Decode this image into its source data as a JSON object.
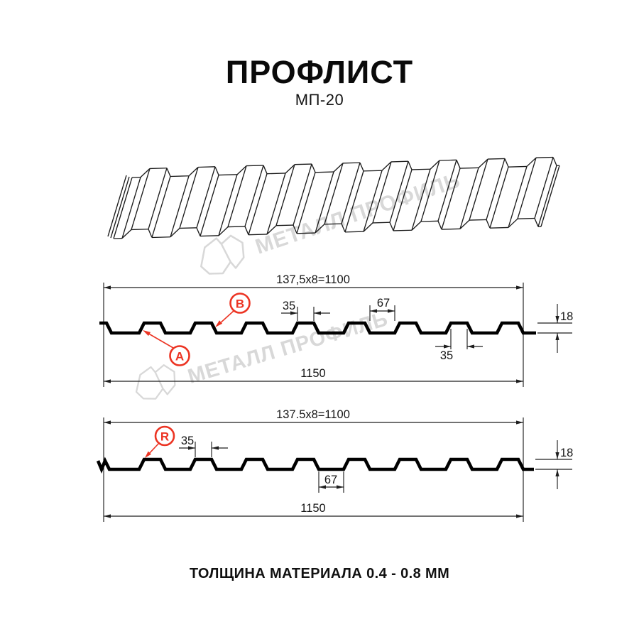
{
  "title": "ПРОФЛИСТ",
  "subtitle": "МП-20",
  "footer_text": "ТОЛЩИНА МАТЕРИАЛА 0.4 - 0.8 ММ",
  "watermark": {
    "text": "МЕТАЛЛ ПРОФИЛЬ"
  },
  "colors": {
    "red": "#ec3423",
    "line_dark": "#1f1f1f",
    "watermark_gray": "#d8d8d8"
  },
  "section1": {
    "dim_width_top": "137,5x8=1100",
    "dim_35_top": "35",
    "dim_67": "67",
    "dim_18": "18",
    "dim_35_bottom": "35",
    "dim_width_bottom": "1150",
    "label_a": "A",
    "label_b": "B"
  },
  "section2": {
    "dim_width_top": "137.5x8=1100",
    "dim_35": "35",
    "dim_67": "67",
    "dim_18": "18",
    "dim_width_bottom": "1150",
    "label_r": "R"
  }
}
